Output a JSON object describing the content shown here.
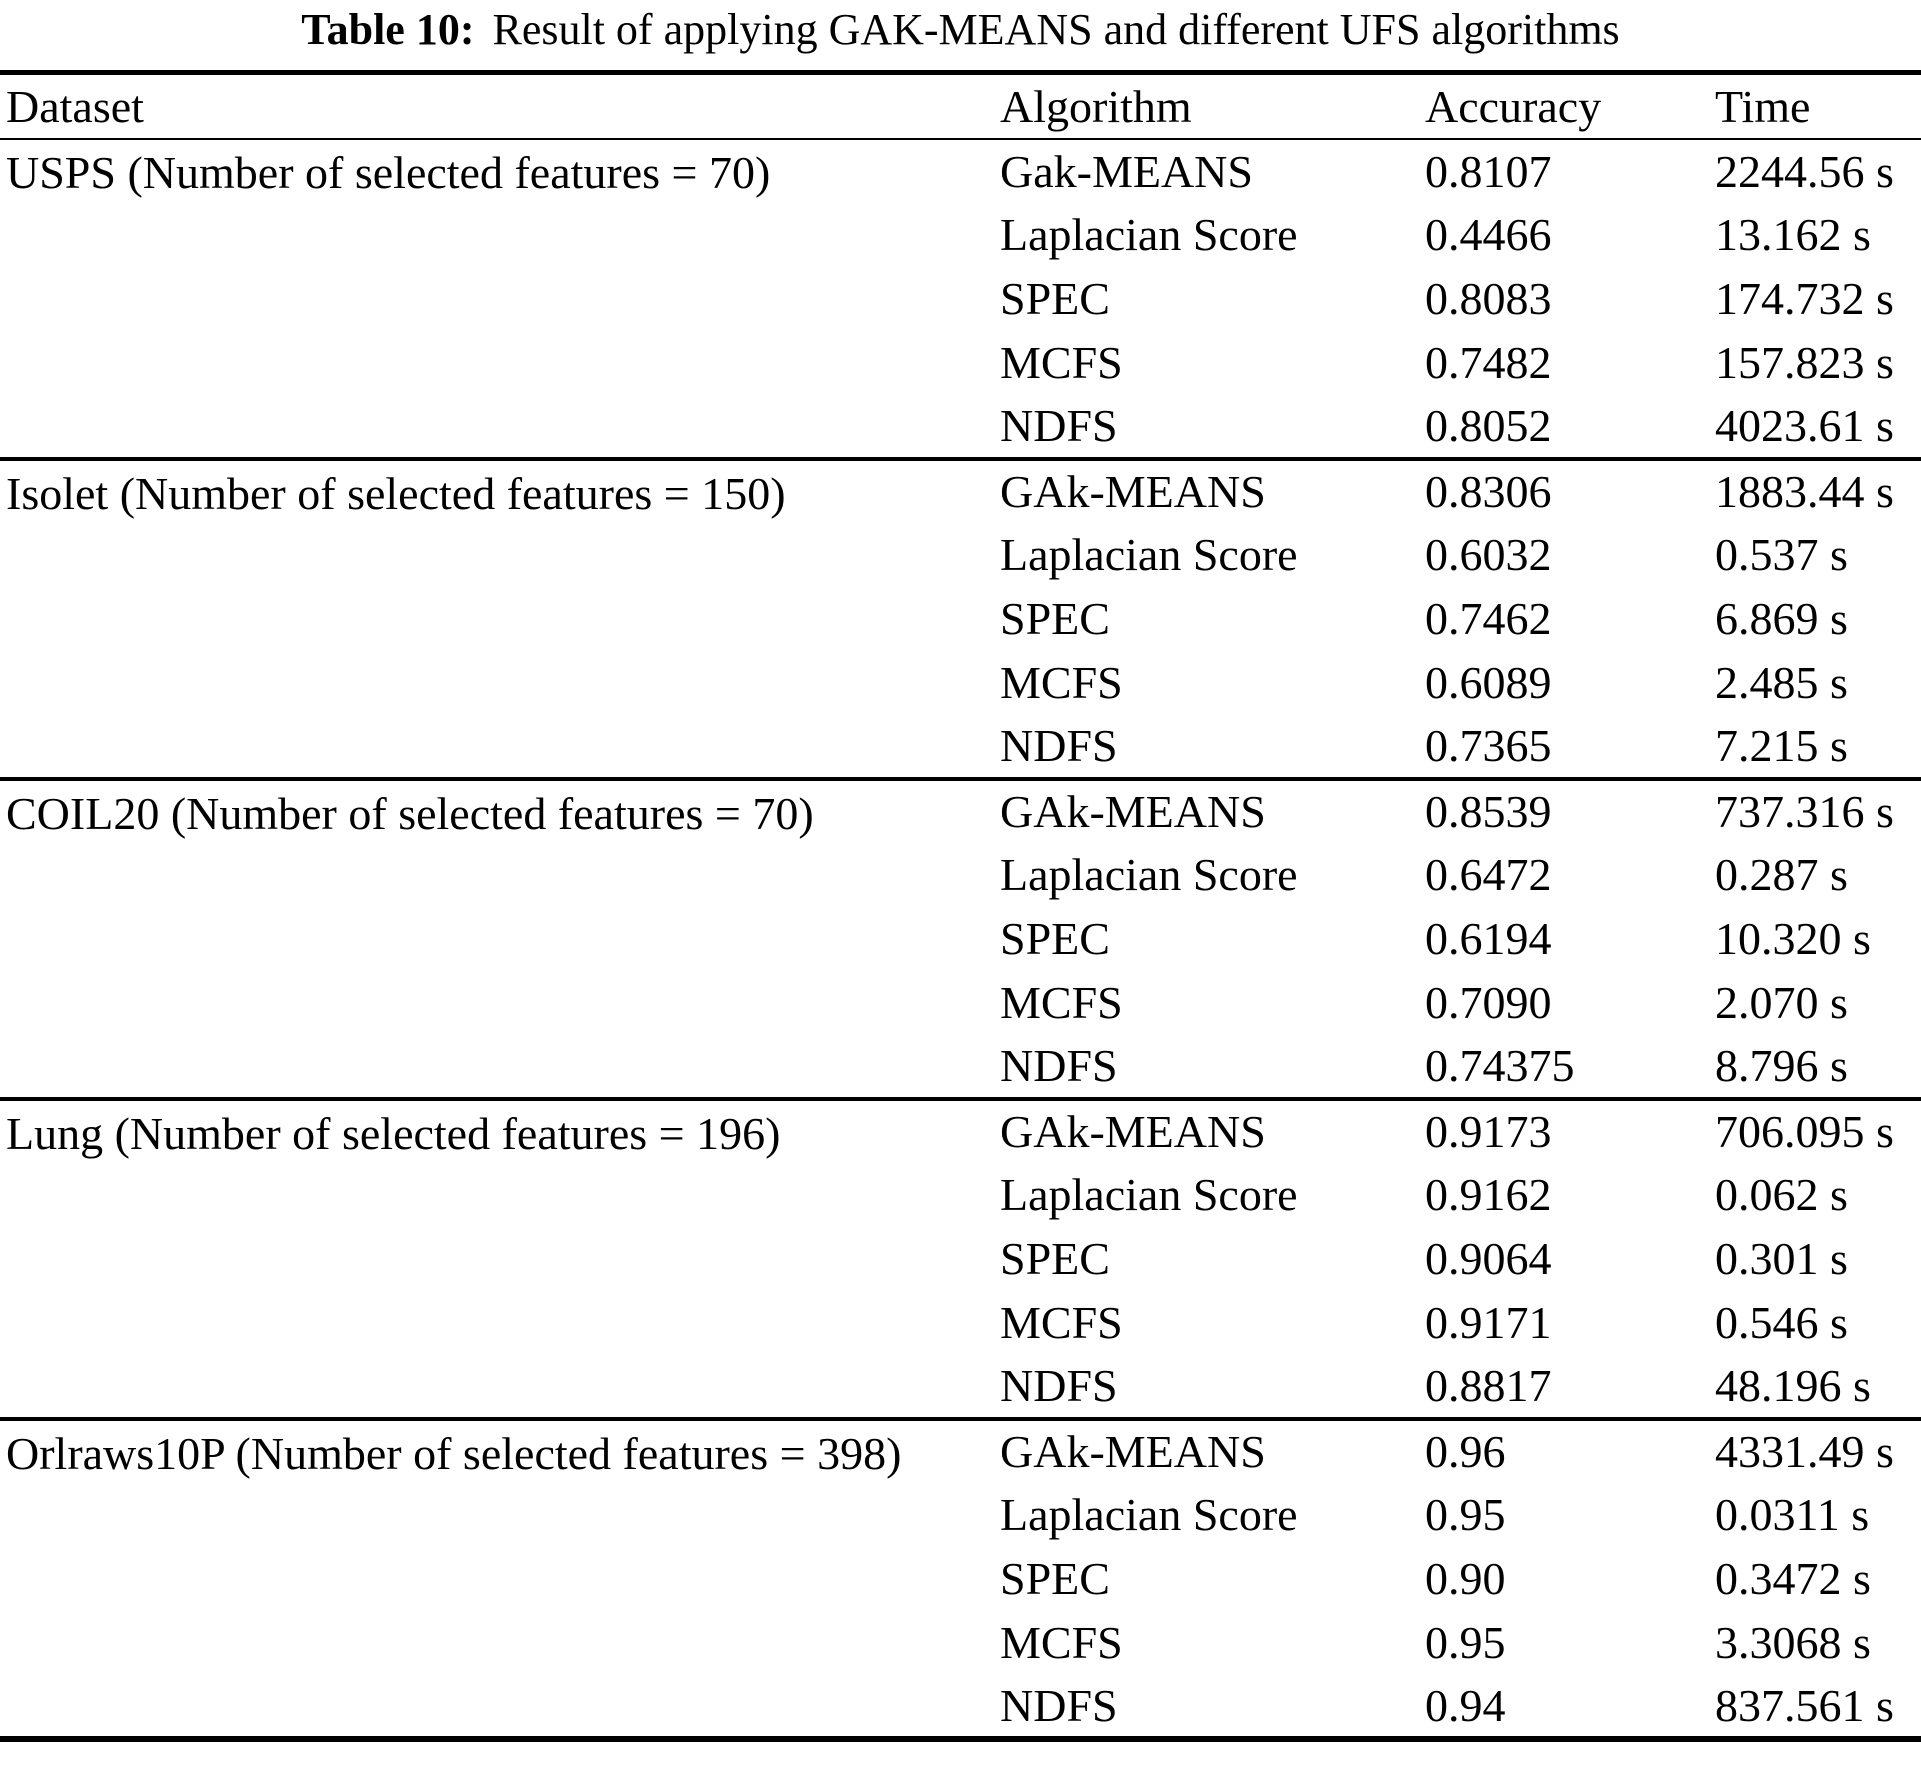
{
  "caption": {
    "label": "Table 10:",
    "text": "Result of applying GAK-MEANS and different UFS algorithms"
  },
  "columns": {
    "dataset": "Dataset",
    "algorithm": "Algorithm",
    "accuracy": "Accuracy",
    "time": "Time"
  },
  "groups": [
    {
      "dataset": "USPS (Number of selected features = 70)",
      "rows": [
        {
          "algorithm": "Gak-MEANS",
          "accuracy": "0.8107",
          "time": "2244.56 s"
        },
        {
          "algorithm": "Laplacian Score",
          "accuracy": "0.4466",
          "time": "13.162 s"
        },
        {
          "algorithm": "SPEC",
          "accuracy": "0.8083",
          "time": "174.732 s"
        },
        {
          "algorithm": "MCFS",
          "accuracy": "0.7482",
          "time": "157.823 s"
        },
        {
          "algorithm": "NDFS",
          "accuracy": "0.8052",
          "time": "4023.61 s"
        }
      ]
    },
    {
      "dataset": "Isolet (Number of selected features = 150)",
      "rows": [
        {
          "algorithm": "GAk-MEANS",
          "accuracy": "0.8306",
          "time": "1883.44 s"
        },
        {
          "algorithm": "Laplacian Score",
          "accuracy": "0.6032",
          "time": "0.537 s"
        },
        {
          "algorithm": "SPEC",
          "accuracy": "0.7462",
          "time": "6.869 s"
        },
        {
          "algorithm": "MCFS",
          "accuracy": "0.6089",
          "time": "2.485 s"
        },
        {
          "algorithm": "NDFS",
          "accuracy": "0.7365",
          "time": "7.215 s"
        }
      ]
    },
    {
      "dataset": "COIL20 (Number of selected features = 70)",
      "rows": [
        {
          "algorithm": "GAk-MEANS",
          "accuracy": "0.8539",
          "time": "737.316 s"
        },
        {
          "algorithm": "Laplacian Score",
          "accuracy": "0.6472",
          "time": "0.287 s"
        },
        {
          "algorithm": "SPEC",
          "accuracy": "0.6194",
          "time": "10.320 s"
        },
        {
          "algorithm": "MCFS",
          "accuracy": "0.7090",
          "time": "2.070 s"
        },
        {
          "algorithm": "NDFS",
          "accuracy": "0.74375",
          "time": "8.796 s"
        }
      ]
    },
    {
      "dataset": "Lung (Number of selected features = 196)",
      "rows": [
        {
          "algorithm": "GAk-MEANS",
          "accuracy": "0.9173",
          "time": "706.095 s"
        },
        {
          "algorithm": "Laplacian Score",
          "accuracy": "0.9162",
          "time": "0.062 s"
        },
        {
          "algorithm": "SPEC",
          "accuracy": "0.9064",
          "time": "0.301 s"
        },
        {
          "algorithm": "MCFS",
          "accuracy": "0.9171",
          "time": "0.546 s"
        },
        {
          "algorithm": "NDFS",
          "accuracy": "0.8817",
          "time": "48.196 s"
        }
      ]
    },
    {
      "dataset": "Orlraws10P (Number of selected features = 398)",
      "rows": [
        {
          "algorithm": "GAk-MEANS",
          "accuracy": "0.96",
          "time": "4331.49 s"
        },
        {
          "algorithm": "Laplacian Score",
          "accuracy": "0.95",
          "time": "0.0311 s"
        },
        {
          "algorithm": "SPEC",
          "accuracy": "0.90",
          "time": "0.3472 s"
        },
        {
          "algorithm": "MCFS",
          "accuracy": "0.95",
          "time": "3.3068 s"
        },
        {
          "algorithm": "NDFS",
          "accuracy": "0.94",
          "time": "837.561 s"
        }
      ]
    }
  ]
}
